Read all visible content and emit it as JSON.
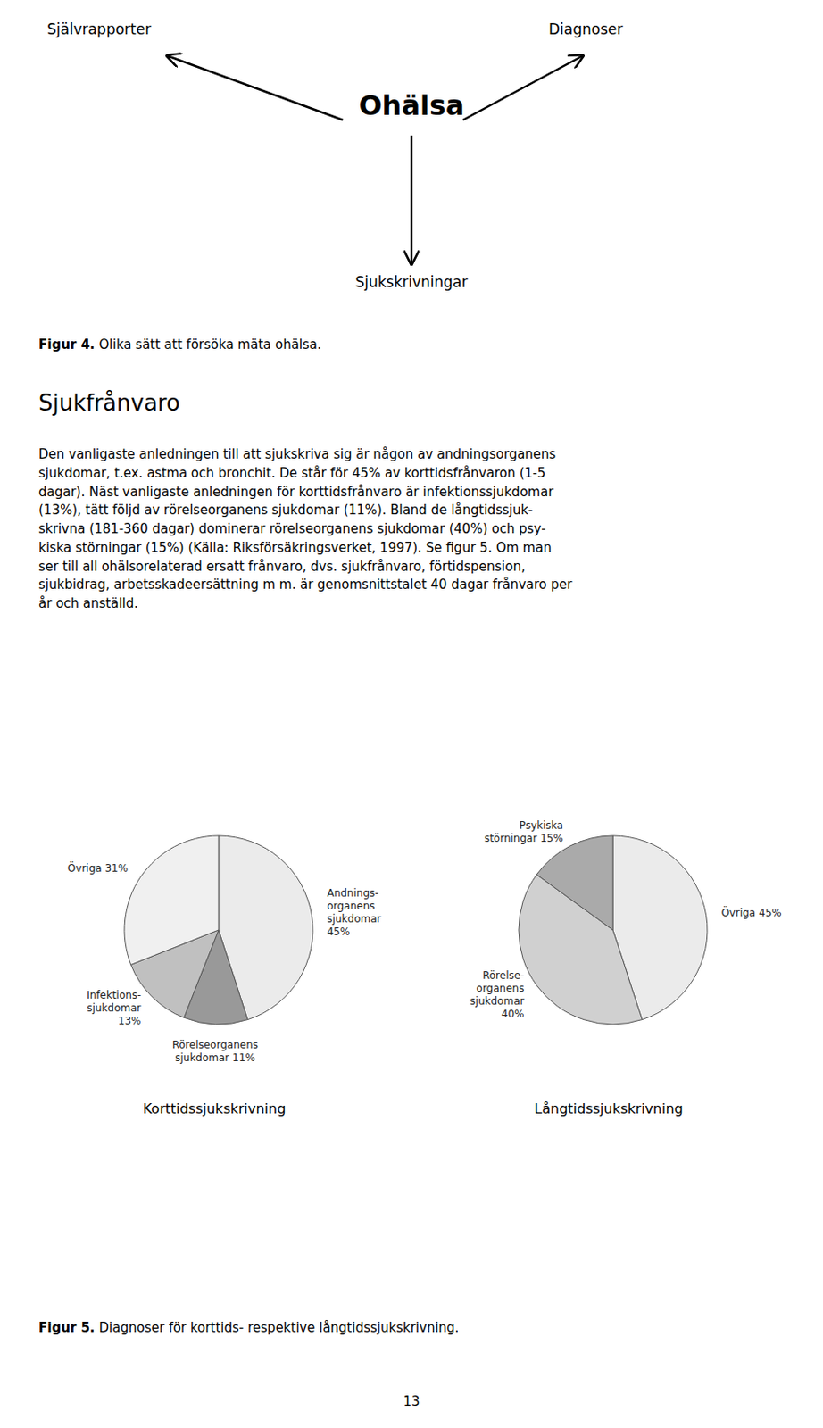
{
  "chart_data": [
    {
      "type": "pie",
      "title": "Korttidssjukskrivning",
      "values": [
        45,
        11,
        13,
        31
      ],
      "value_labels": [
        "Andnings-\norganens\nsjukdomar\n45%",
        "Rörelseorganens\nsjukdomar 11%",
        "Infektions-\nsjukdomar\n13%",
        "Övriga 31%"
      ],
      "colors": [
        "#ebebeb",
        "#999999",
        "#c0c0c0",
        "#f0f0f0"
      ],
      "data_labels": true,
      "annotations": [
        "Självrapporter",
        "Diagnoser",
        "Ohälsa",
        "Sjukskrivningar",
        "Figur 4.",
        "Olika sätt att försöka mäta ohälsa.",
        "Sjukfrånvaro",
        "Den vanligaste anledningen till att sjukskriva sig är någon av andningsorganens\nsjukdomar, t.ex. astma och bronchit. De står för 45% av korttidsfrånvaron (1-5\ndagar). Näst vanligaste anledningen för korttidsfrånvaro är infektionssjukdomar\n(13%), tätt följd av rörelseorganens sjukdomar (11%). Bland de långtidssjuk-\nskrivna (181-360 dagar) dominerar rörelseorganens sjukdomar (40%) och psy-\nkiska störningar (15%) (Källa: Riksförsäkringsverket, 1997). Se figur 5. Om man\nser till all ohälsorelaterad ersatt frånvaro, dvs. sjukfrånvaro, förtidspension,\nsjukbidrag, arbetsskadeersättning m m. är genomsnittstalet 40 dagar frånvaro per\når och anställd."
      ]
    },
    {
      "type": "pie",
      "title": "Långtidssjukskrivning",
      "values": [
        45,
        40,
        15
      ],
      "value_labels": [
        "Övriga 45%",
        "Rörelse-\norganens\nsjukdomar\n40%",
        "Psykiska\nstörningar 15%"
      ],
      "colors": [
        "#ebebeb",
        "#d0d0d0",
        "#aaaaaa"
      ],
      "data_labels": true,
      "annotations": [
        "Figur 5.",
        "Diagnoser för korttids- respektive långtidssjukskrivning.",
        "13"
      ]
    }
  ]
}
